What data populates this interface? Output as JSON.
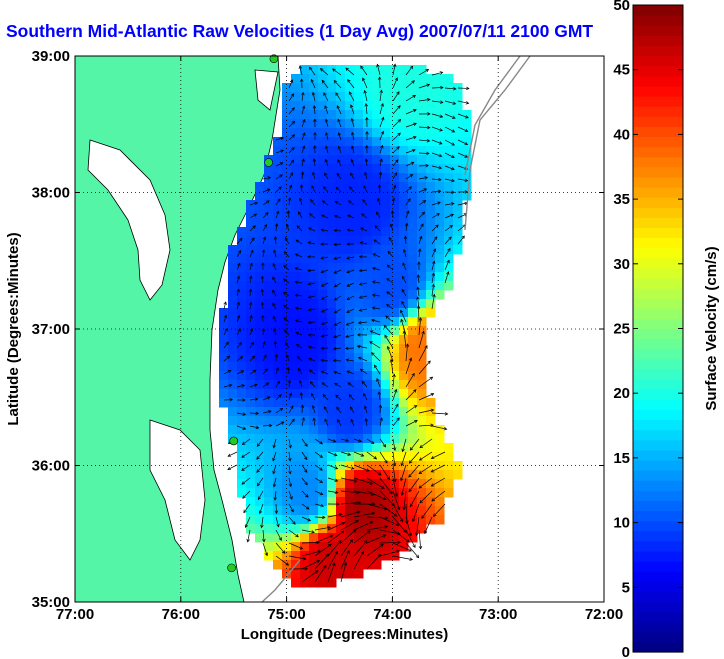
{
  "chart_data": {
    "type": "heatmap",
    "title": "Southern Mid-Atlantic Raw Velocities (1 Day Avg) 2007/07/11 2100 GMT",
    "xlabel": "Longitude (Degrees:Minutes)",
    "ylabel": "Latitude (Degrees:Minutes)",
    "colorbar_label": "Surface Velocity (cm/s)",
    "x_range": [
      -77,
      -72
    ],
    "y_range": [
      35,
      39
    ],
    "x_ticks": [
      {
        "value": -77,
        "label": "77:00"
      },
      {
        "value": -76,
        "label": "76:00"
      },
      {
        "value": -75,
        "label": "75:00"
      },
      {
        "value": -74,
        "label": "74:00"
      },
      {
        "value": -73,
        "label": "73:00"
      },
      {
        "value": -72,
        "label": "72:00"
      }
    ],
    "y_ticks": [
      {
        "value": 35,
        "label": "35:00"
      },
      {
        "value": 36,
        "label": "36:00"
      },
      {
        "value": 37,
        "label": "37:00"
      },
      {
        "value": 38,
        "label": "38:00"
      },
      {
        "value": 39,
        "label": "39:00"
      }
    ],
    "colorbar": {
      "min": 0,
      "max": 50,
      "ticks": [
        {
          "value": 0,
          "label": "0"
        },
        {
          "value": 5,
          "label": "5"
        },
        {
          "value": 10,
          "label": "10"
        },
        {
          "value": 15,
          "label": "15"
        },
        {
          "value": 20,
          "label": "20"
        },
        {
          "value": 25,
          "label": "25"
        },
        {
          "value": 30,
          "label": "30"
        },
        {
          "value": 35,
          "label": "35"
        },
        {
          "value": 40,
          "label": "40"
        },
        {
          "value": 45,
          "label": "45"
        },
        {
          "value": 50,
          "label": "50"
        }
      ]
    },
    "grid": true,
    "colors": {
      "title": "#0000ff",
      "land": "#55f5a8",
      "coast": "#000000",
      "isobath": "#888888",
      "station": "#22cc22"
    },
    "stations": [
      {
        "lon": -75.12,
        "lat": 38.98
      },
      {
        "lon": -75.17,
        "lat": 38.22
      },
      {
        "lon": -75.5,
        "lat": 36.18
      },
      {
        "lon": -75.52,
        "lat": 35.25
      }
    ],
    "velocity_regions": [
      {
        "lon": -74.35,
        "lat": 37.9,
        "speed": 8
      },
      {
        "lon": -74.0,
        "lat": 37.3,
        "speed": 10
      },
      {
        "lon": -74.9,
        "lat": 36.9,
        "speed": 7
      },
      {
        "lon": -74.4,
        "lat": 36.4,
        "speed": 9
      },
      {
        "lon": -74.8,
        "lat": 35.8,
        "speed": 13
      },
      {
        "lon": -73.7,
        "lat": 36.85,
        "speed": 38
      },
      {
        "lon": -73.85,
        "lat": 38.8,
        "speed": 20
      },
      {
        "lon": -74.3,
        "lat": 35.7,
        "speed": 48
      },
      {
        "lon": -74.6,
        "lat": 35.3,
        "speed": 46
      }
    ]
  }
}
